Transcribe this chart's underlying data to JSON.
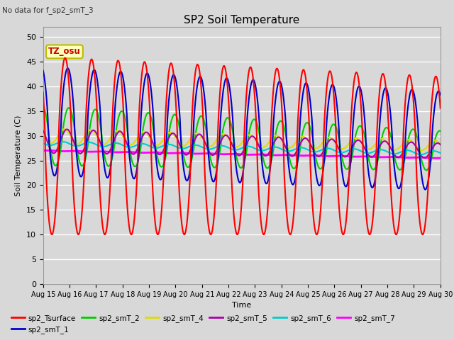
{
  "title": "SP2 Soil Temperature",
  "xlabel": "Time",
  "ylabel": "Soil Temperature (C)",
  "no_data_text": "No data for f_sp2_smT_3",
  "tz_label": "TZ_osu",
  "ylim": [
    0,
    52
  ],
  "yticks": [
    0,
    5,
    10,
    15,
    20,
    25,
    30,
    35,
    40,
    45,
    50
  ],
  "x_tick_labels": [
    "Aug 15",
    "Aug 16",
    "Aug 17",
    "Aug 18",
    "Aug 19",
    "Aug 20",
    "Aug 21",
    "Aug 22",
    "Aug 23",
    "Aug 24",
    "Aug 25",
    "Aug 26",
    "Aug 27",
    "Aug 28",
    "Aug 29",
    "Aug 30"
  ],
  "series": [
    {
      "label": "sp2_Tsurface",
      "color": "#ff0000"
    },
    {
      "label": "sp2_smT_1",
      "color": "#0000cc"
    },
    {
      "label": "sp2_smT_2",
      "color": "#00cc00"
    },
    {
      "label": "sp2_smT_4",
      "color": "#dddd00"
    },
    {
      "label": "sp2_smT_5",
      "color": "#aa00aa"
    },
    {
      "label": "sp2_smT_6",
      "color": "#00cccc"
    },
    {
      "label": "sp2_smT_7",
      "color": "#ff00ff"
    }
  ],
  "bg_color": "#d8d8d8",
  "plot_bg_color": "#d8d8d8",
  "grid_color": "#ffffff",
  "n_days": 15,
  "pts_per_day": 96
}
